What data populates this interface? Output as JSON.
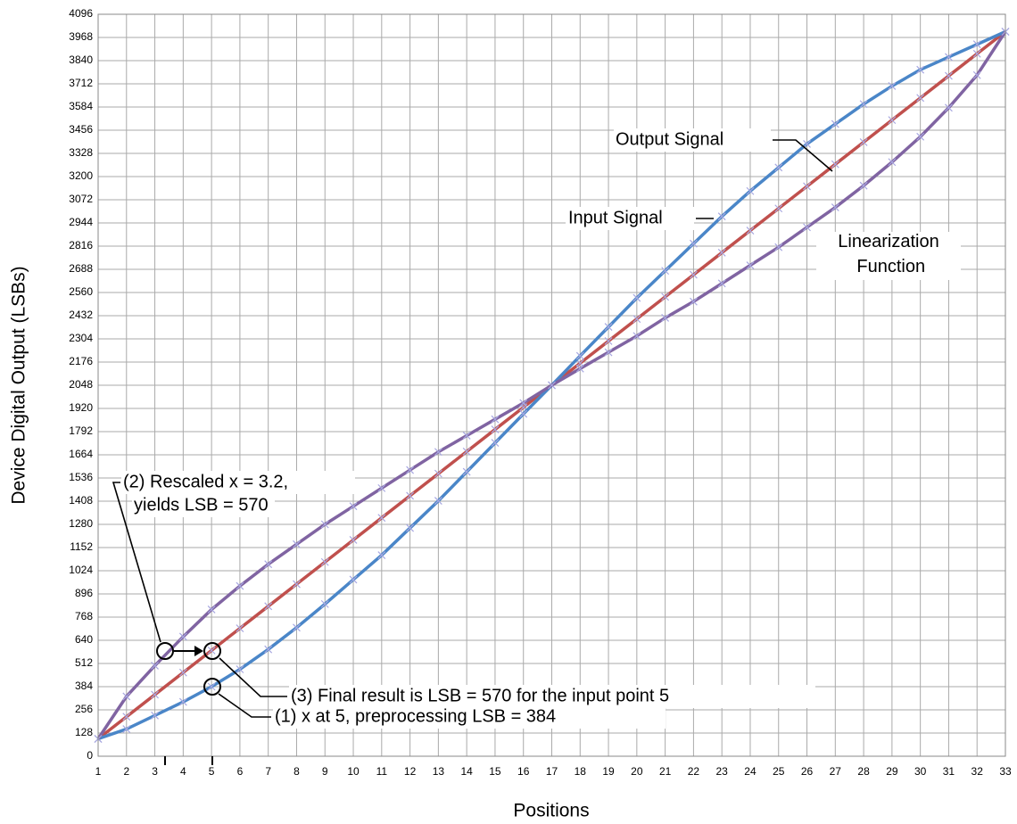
{
  "chart_data": {
    "type": "line",
    "x_label": "Positions",
    "y_label": "Device Digital Output (LSBs)",
    "x": [
      1,
      2,
      3,
      4,
      5,
      6,
      7,
      8,
      9,
      10,
      11,
      12,
      13,
      14,
      15,
      16,
      17,
      18,
      19,
      20,
      21,
      22,
      23,
      24,
      25,
      26,
      27,
      28,
      29,
      30,
      31,
      32,
      33
    ],
    "xlim": [
      1,
      33
    ],
    "xticks": [
      1,
      2,
      3,
      4,
      5,
      6,
      7,
      8,
      9,
      10,
      11,
      12,
      13,
      14,
      15,
      16,
      17,
      18,
      19,
      20,
      21,
      22,
      23,
      24,
      25,
      26,
      27,
      28,
      29,
      30,
      31,
      32,
      33
    ],
    "ylim": [
      0,
      4096
    ],
    "yticks": [
      0,
      128,
      256,
      384,
      512,
      640,
      768,
      896,
      1024,
      1152,
      1280,
      1408,
      1536,
      1664,
      1792,
      1920,
      2048,
      2176,
      2304,
      2432,
      2560,
      2688,
      2816,
      2944,
      3072,
      3200,
      3328,
      3456,
      3584,
      3712,
      3840,
      3968,
      4096
    ],
    "grid": true,
    "series": [
      {
        "name": "Output Signal",
        "color": "#c0504d",
        "values": [
          96,
          218,
          340,
          462,
          584,
          706,
          828,
          950,
          1072,
          1194,
          1316,
          1438,
          1560,
          1682,
          1804,
          1926,
          2048,
          2170,
          2292,
          2414,
          2536,
          2658,
          2780,
          2902,
          3024,
          3146,
          3268,
          3390,
          3512,
          3634,
          3756,
          3878,
          4000
        ]
      },
      {
        "name": "Input Signal",
        "color": "#4a86c8",
        "values": [
          96,
          150,
          225,
          300,
          384,
          480,
          590,
          710,
          840,
          975,
          1110,
          1260,
          1410,
          1570,
          1730,
          1890,
          2048,
          2210,
          2370,
          2530,
          2680,
          2830,
          2980,
          3120,
          3250,
          3380,
          3490,
          3600,
          3700,
          3790,
          3860,
          3930,
          4000
        ]
      },
      {
        "name": "Linearization Function",
        "color": "#8064a2",
        "values": [
          96,
          330,
          500,
          660,
          810,
          940,
          1060,
          1170,
          1280,
          1380,
          1480,
          1580,
          1680,
          1770,
          1860,
          1950,
          2048,
          2140,
          2230,
          2320,
          2420,
          2510,
          2610,
          2710,
          2810,
          2920,
          3030,
          3150,
          3280,
          3420,
          3580,
          3760,
          4000
        ]
      }
    ],
    "annotations": [
      "(2) Rescaled x = 3.2,",
      "yields LSB = 570",
      "(3) Final result is LSB = 570 for the input point 5",
      "(1) x at 5, preprocessing LSB = 384"
    ]
  }
}
